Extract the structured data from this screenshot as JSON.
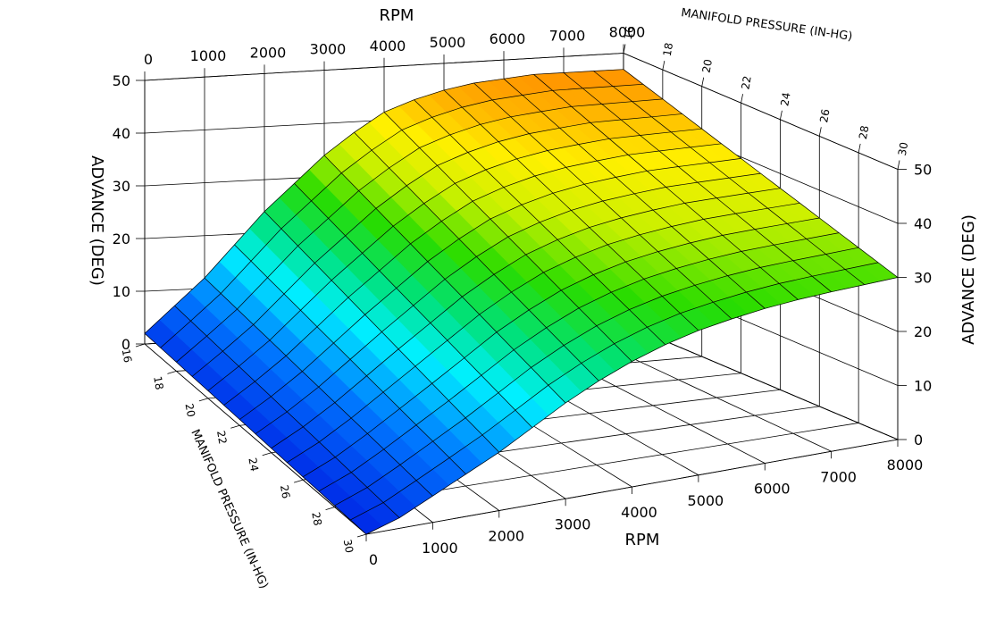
{
  "chart_data": {
    "type": "surface",
    "title": "",
    "x_axis": {
      "label": "RPM",
      "ticks": [
        0,
        1000,
        2000,
        3000,
        4000,
        5000,
        6000,
        7000,
        8000
      ],
      "range": [
        0,
        8000
      ]
    },
    "y_axis": {
      "label": "MANIFOLD PRESSURE (IN-HG)",
      "ticks": [
        16,
        18,
        20,
        22,
        24,
        26,
        28,
        30
      ],
      "range": [
        16,
        30
      ]
    },
    "z_axis": {
      "label": "ADVANCE (DEG)",
      "ticks": [
        0,
        10,
        20,
        30,
        40,
        50
      ],
      "range": [
        0,
        50
      ]
    },
    "rpm_grid": [
      0,
      500,
      1000,
      1500,
      2000,
      2500,
      3000,
      3500,
      4000,
      4500,
      5000,
      5500,
      6000,
      6500,
      7000,
      7500,
      8000
    ],
    "map_grid": [
      16,
      17,
      18,
      19,
      20,
      21,
      22,
      23,
      24,
      25,
      26,
      27,
      28,
      29,
      30
    ],
    "advance_at_16_inhg": [
      2,
      7,
      12,
      18,
      24,
      29,
      34,
      38,
      41.5,
      43.5,
      45,
      46,
      46.5,
      47,
      47,
      47,
      47
    ],
    "advance_at_30_inhg": [
      0,
      2,
      5,
      8,
      11,
      14.5,
      18,
      21,
      23.5,
      25.5,
      27,
      28,
      28.8,
      29.3,
      29.6,
      29.8,
      30
    ],
    "grid": true
  }
}
